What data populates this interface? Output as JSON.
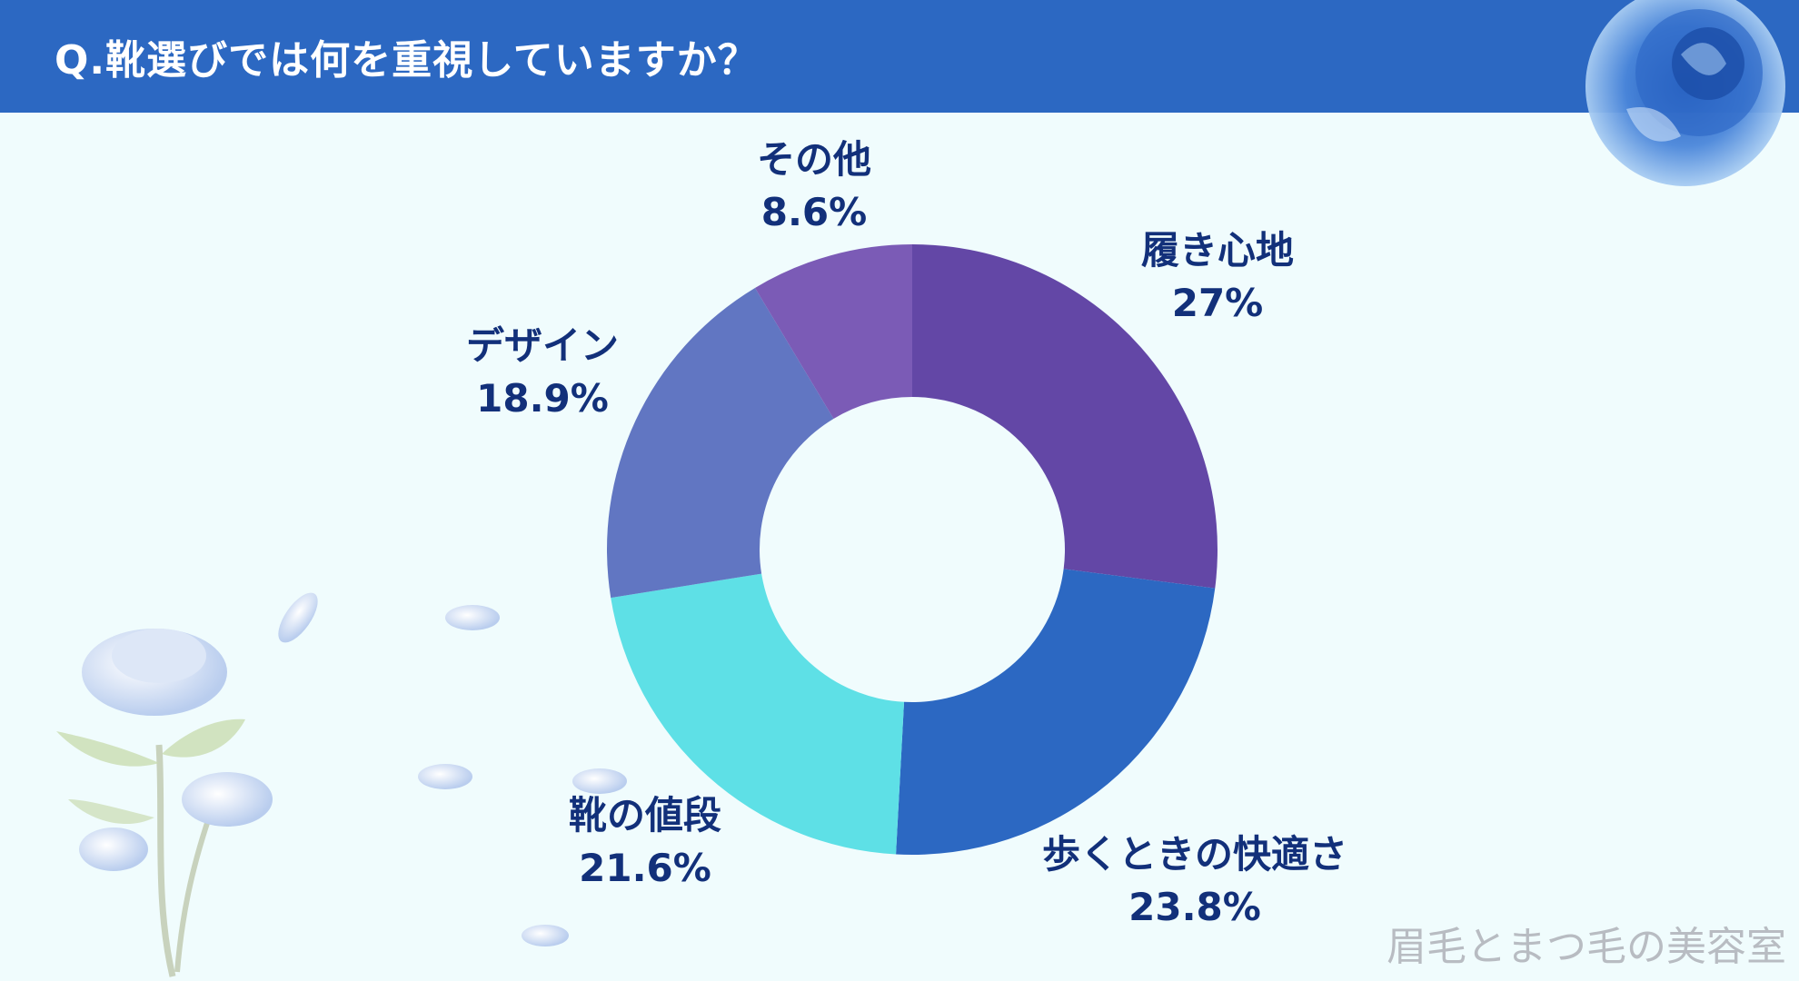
{
  "header": {
    "title": "Q.靴選びでは何を重視していますか？"
  },
  "watermark": "眉毛とまつ毛の美容室",
  "chart_data": {
    "type": "pie",
    "donut": true,
    "categories": [
      "履き心地",
      "歩くときの快適さ",
      "靴の値段",
      "デザイン",
      "その他"
    ],
    "values": [
      27,
      23.8,
      21.6,
      18.9,
      8.6
    ],
    "value_labels": [
      "27%",
      "23.8%",
      "21.6%",
      "18.9%",
      "8.6%"
    ],
    "colors": [
      "#6347a6",
      "#2c68c2",
      "#5ee0e6",
      "#6176c2",
      "#7b5bb6"
    ],
    "start": "12 o'clock",
    "direction": "clockwise"
  }
}
